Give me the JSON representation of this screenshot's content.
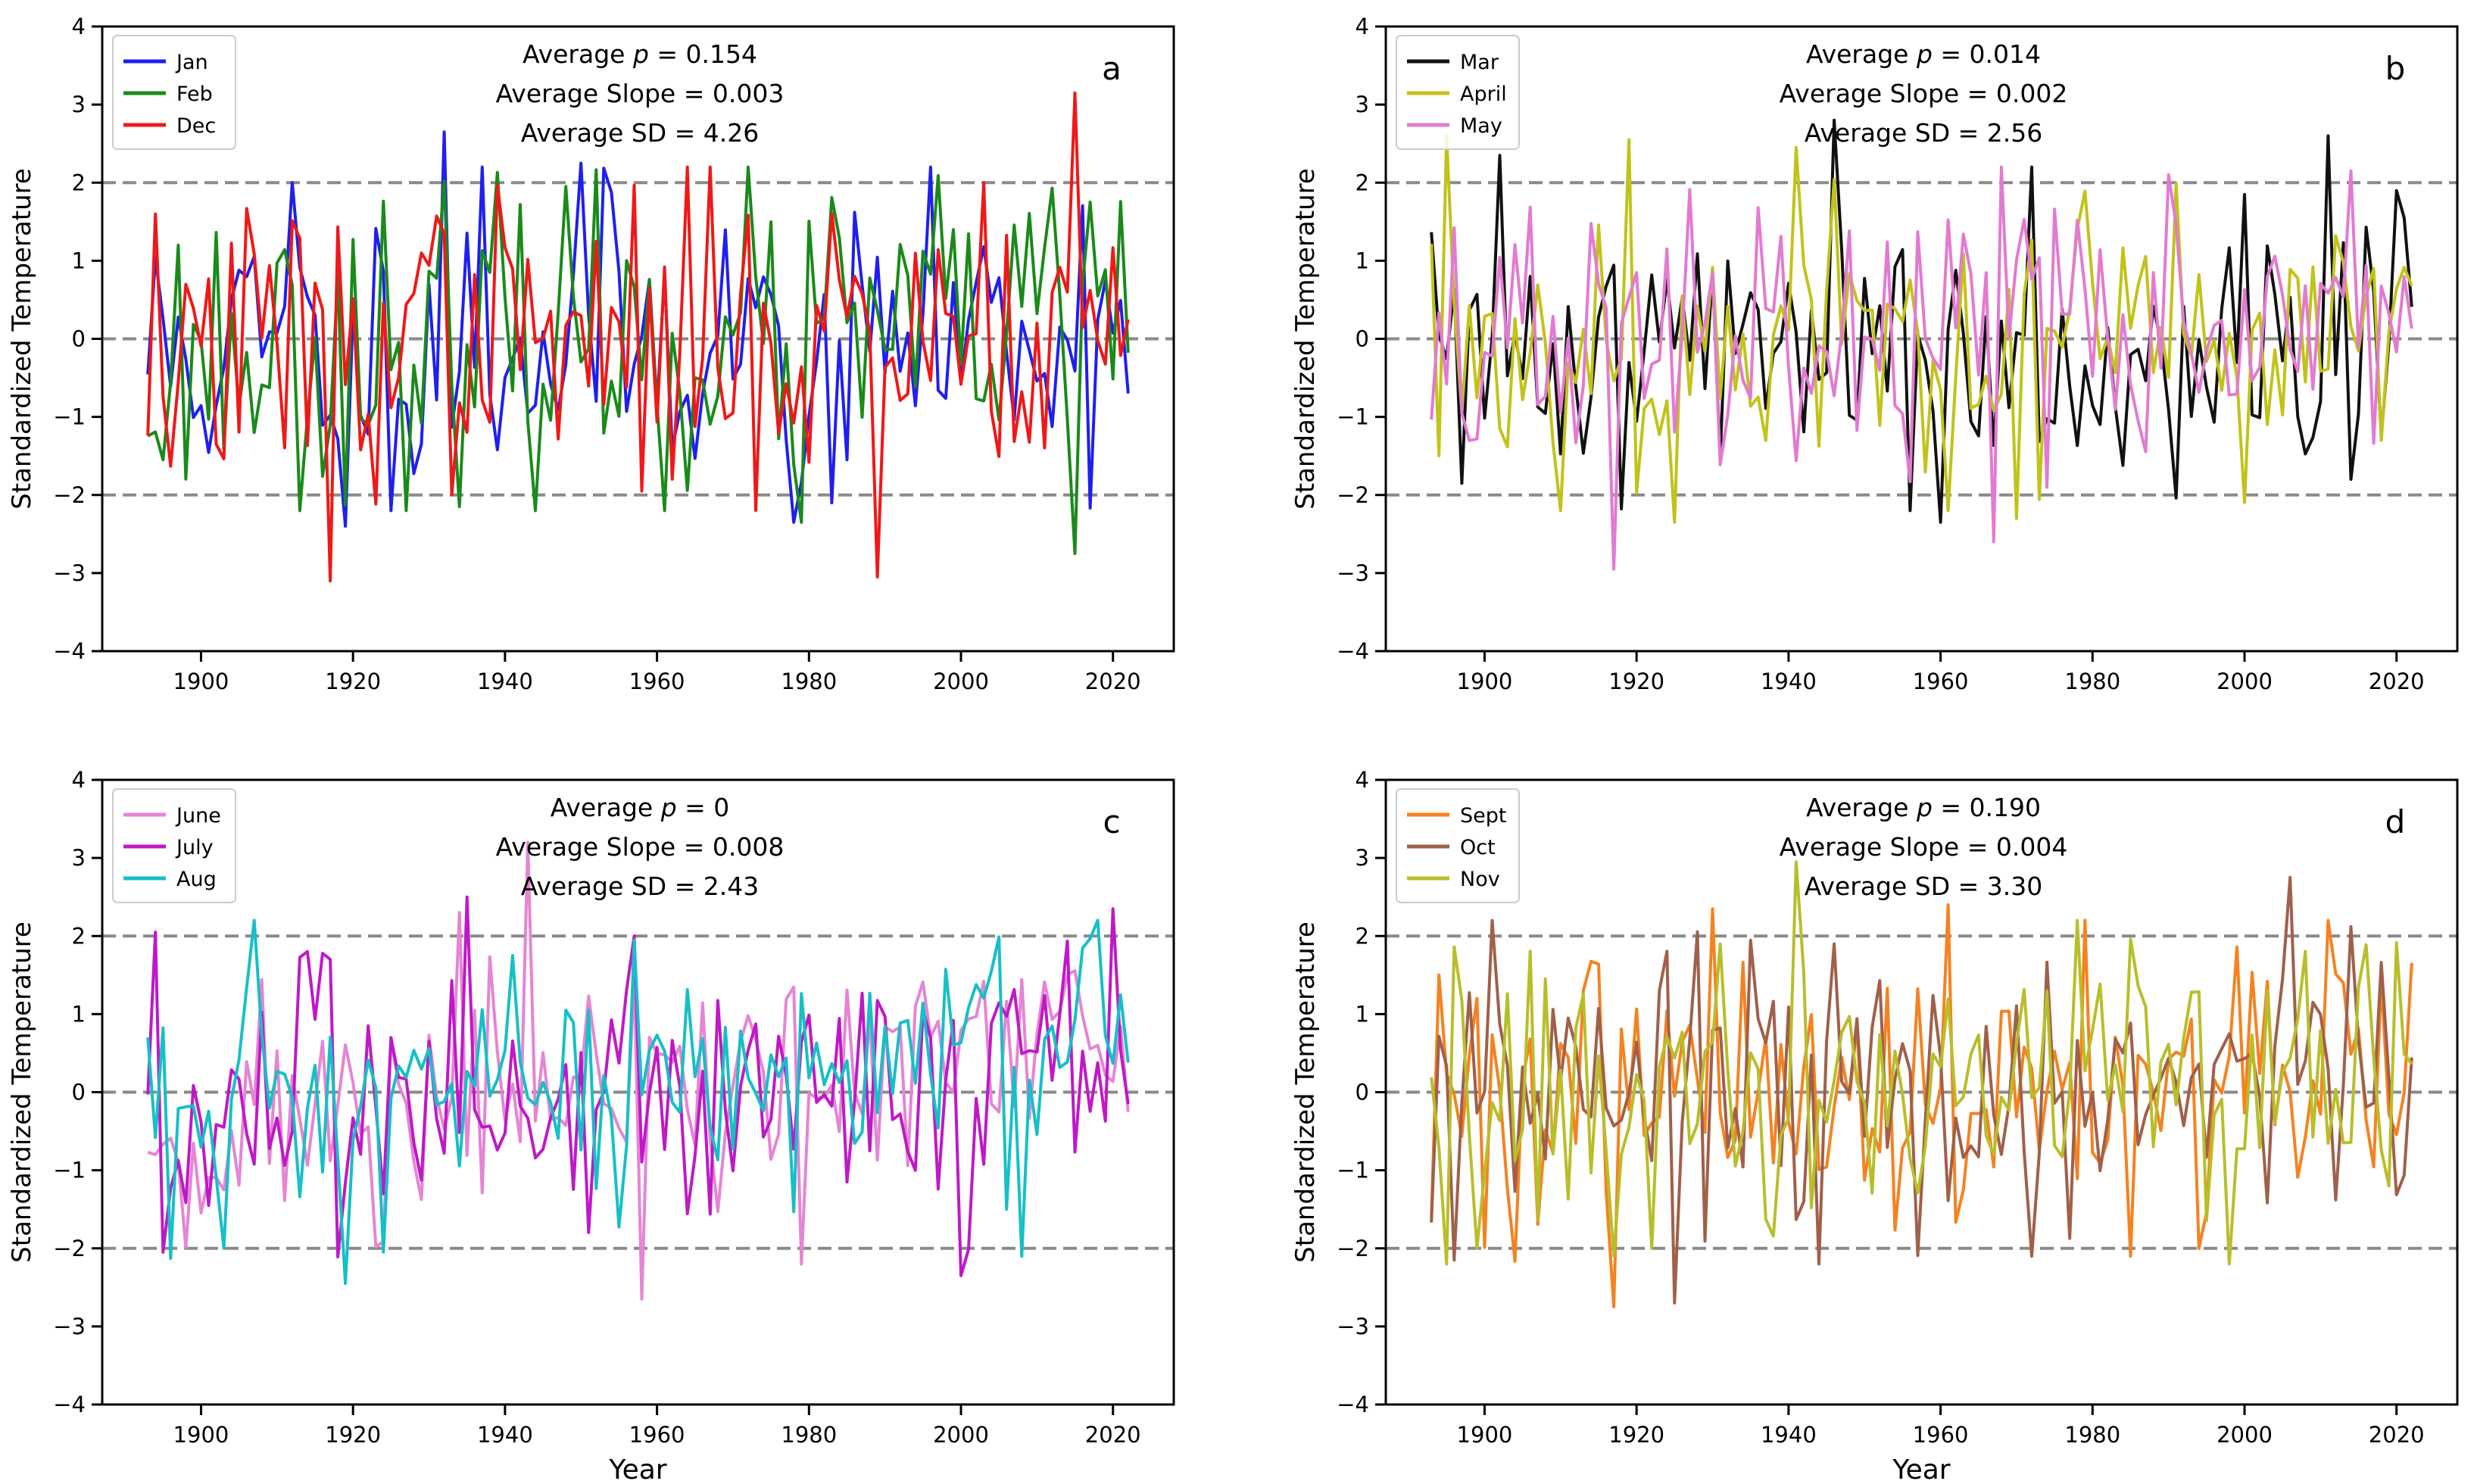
{
  "chart_data": [
    {
      "type": "line",
      "panel_label": "a",
      "xlabel": "",
      "ylabel": "Standardized Temperature",
      "xlim": [
        1887,
        2028
      ],
      "ylim": [
        -4,
        4
      ],
      "xticks": [
        "1900",
        "1920",
        "1940",
        "1960",
        "1980",
        "2000",
        "2020"
      ],
      "yticks": [
        "−4",
        "−3",
        "−2",
        "−1",
        "0",
        "1",
        "2",
        "3",
        "4"
      ],
      "hlines": [
        -2,
        0,
        2
      ],
      "stats": [
        "Average p = 0.154",
        "Average Slope = 0.003",
        "Average SD = 4.26"
      ],
      "legend_position": "top-left",
      "x": {
        "start": 1893,
        "end": 2022
      },
      "series": [
        {
          "name": "Jan",
          "color": "#1f1ff0",
          "seed": 11,
          "sd": 0.95,
          "trend": 0.003,
          "anchors": [
            [
              1932,
              2.65
            ],
            [
              1937,
              2.2
            ],
            [
              1950,
              2.25
            ],
            [
              1912,
              2.0
            ],
            [
              1919,
              -2.4
            ],
            [
              1978,
              -2.35
            ],
            [
              1983,
              -2.1
            ],
            [
              2022,
              -0.7
            ]
          ]
        },
        {
          "name": "Feb",
          "color": "#1a8a1a",
          "seed": 23,
          "sd": 0.95,
          "trend": 0.003,
          "anchors": [
            [
              1895,
              -1.55
            ],
            [
              1934,
              -2.15
            ],
            [
              1961,
              -2.2
            ],
            [
              1979,
              -2.35
            ],
            [
              2015,
              -2.75
            ],
            [
              2017,
              1.75
            ],
            [
              1948,
              1.95
            ]
          ]
        },
        {
          "name": "Dec",
          "color": "#f01818",
          "seed": 37,
          "sd": 0.95,
          "trend": 0.003,
          "anchors": [
            [
              1917,
              -3.1
            ],
            [
              1989,
              -3.05
            ],
            [
              2015,
              3.15
            ],
            [
              1958,
              -1.95
            ],
            [
              2003,
              2.0
            ],
            [
              1932,
              1.35
            ]
          ]
        }
      ]
    },
    {
      "type": "line",
      "panel_label": "b",
      "xlabel": "",
      "ylabel": "Standardized Temperature",
      "xlim": [
        1887,
        2028
      ],
      "ylim": [
        -4,
        4
      ],
      "xticks": [
        "1900",
        "1920",
        "1940",
        "1960",
        "1980",
        "2000",
        "2020"
      ],
      "yticks": [
        "−4",
        "−3",
        "−2",
        "−1",
        "0",
        "1",
        "2",
        "3",
        "4"
      ],
      "hlines": [
        -2,
        0,
        2
      ],
      "stats": [
        "Average p = 0.014",
        "Average Slope = 0.002",
        "Average SD = 2.56"
      ],
      "legend_position": "top-left",
      "x": {
        "start": 1893,
        "end": 2022
      },
      "series": [
        {
          "name": "Mar",
          "color": "#111111",
          "seed": 41,
          "sd": 0.9,
          "trend": 0.002,
          "anchors": [
            [
              1946,
              2.8
            ],
            [
              2011,
              2.6
            ],
            [
              1902,
              2.35
            ],
            [
              1960,
              -2.35
            ],
            [
              2014,
              -1.8
            ],
            [
              1897,
              -1.85
            ]
          ]
        },
        {
          "name": "April",
          "color": "#c2c21a",
          "seed": 53,
          "sd": 0.95,
          "trend": 0.002,
          "anchors": [
            [
              1895,
              2.6
            ],
            [
              1941,
              2.45
            ],
            [
              1919,
              2.55
            ],
            [
              1925,
              -2.35
            ],
            [
              1970,
              -2.3
            ],
            [
              2018,
              -1.3
            ]
          ]
        },
        {
          "name": "May",
          "color": "#e37ad1",
          "seed": 67,
          "sd": 0.9,
          "trend": 0.002,
          "anchors": [
            [
              1917,
              -2.95
            ],
            [
              1967,
              -2.6
            ],
            [
              1990,
              2.1
            ],
            [
              2014,
              2.15
            ],
            [
              1974,
              -1.9
            ]
          ]
        }
      ]
    },
    {
      "type": "line",
      "panel_label": "c",
      "xlabel": "Year",
      "ylabel": "Standardized Temperature",
      "xlim": [
        1887,
        2028
      ],
      "ylim": [
        -4,
        4
      ],
      "xticks": [
        "1900",
        "1920",
        "1940",
        "1960",
        "1980",
        "2000",
        "2020"
      ],
      "yticks": [
        "−4",
        "−3",
        "−2",
        "−1",
        "0",
        "1",
        "2",
        "3",
        "4"
      ],
      "hlines": [
        -2,
        0,
        2
      ],
      "stats": [
        "Average p = 0",
        "Average Slope = 0.008",
        "Average SD = 2.43"
      ],
      "legend_position": "top-left",
      "x": {
        "start": 1893,
        "end": 2022
      },
      "series": [
        {
          "name": "June",
          "color": "#e585d4",
          "seed": 71,
          "sd": 0.8,
          "trend": 0.008,
          "anchors": [
            [
              1943,
              3.2
            ],
            [
              1958,
              -2.65
            ],
            [
              1979,
              -2.2
            ],
            [
              1934,
              2.3
            ],
            [
              2018,
              0.6
            ]
          ]
        },
        {
          "name": "July",
          "color": "#bf19c7",
          "seed": 83,
          "sd": 0.85,
          "trend": 0.008,
          "anchors": [
            [
              1894,
              2.05
            ],
            [
              1895,
              -2.05
            ],
            [
              1935,
              2.5
            ],
            [
              2000,
              -2.35
            ],
            [
              2020,
              2.35
            ],
            [
              1957,
              2.0
            ]
          ]
        },
        {
          "name": "Aug",
          "color": "#17bfc7",
          "seed": 97,
          "sd": 0.85,
          "trend": 0.008,
          "anchors": [
            [
              1919,
              -2.45
            ],
            [
              1903,
              -2.0
            ],
            [
              1941,
              1.75
            ],
            [
              2018,
              2.2
            ],
            [
              2006,
              -1.5
            ],
            [
              1957,
              1.95
            ]
          ]
        }
      ]
    },
    {
      "type": "line",
      "panel_label": "d",
      "xlabel": "Year",
      "ylabel": "Standardized Temperature",
      "xlim": [
        1887,
        2028
      ],
      "ylim": [
        -4,
        4
      ],
      "xticks": [
        "1900",
        "1920",
        "1940",
        "1960",
        "1980",
        "2000",
        "2020"
      ],
      "yticks": [
        "−4",
        "−3",
        "−2",
        "−1",
        "0",
        "1",
        "2",
        "3",
        "4"
      ],
      "hlines": [
        -2,
        0,
        2
      ],
      "stats": [
        "Average p = 0.190",
        "Average Slope = 0.004",
        "Average SD = 3.30"
      ],
      "legend_position": "top-left",
      "x": {
        "start": 1893,
        "end": 2022
      },
      "series": [
        {
          "name": "Sept",
          "color": "#f58220",
          "seed": 101,
          "sd": 0.9,
          "trend": 0.004,
          "anchors": [
            [
              1917,
              -2.75
            ],
            [
              1961,
              2.4
            ],
            [
              1985,
              -2.1
            ],
            [
              1930,
              2.35
            ],
            [
              2011,
              2.2
            ],
            [
              1894,
              1.5
            ]
          ]
        },
        {
          "name": "Oct",
          "color": "#a0604a",
          "seed": 113,
          "sd": 0.9,
          "trend": 0.004,
          "anchors": [
            [
              1925,
              -2.7
            ],
            [
              2006,
              2.75
            ],
            [
              1972,
              -2.1
            ],
            [
              1896,
              -2.15
            ],
            [
              1946,
              1.9
            ]
          ]
        },
        {
          "name": "Nov",
          "color": "#b8be2a",
          "seed": 127,
          "sd": 0.95,
          "trend": 0.004,
          "anchors": [
            [
              1941,
              2.95
            ],
            [
              1922,
              -2.0
            ],
            [
              1908,
              1.45
            ],
            [
              2019,
              -1.2
            ],
            [
              1899,
              -2.0
            ]
          ]
        }
      ]
    }
  ]
}
